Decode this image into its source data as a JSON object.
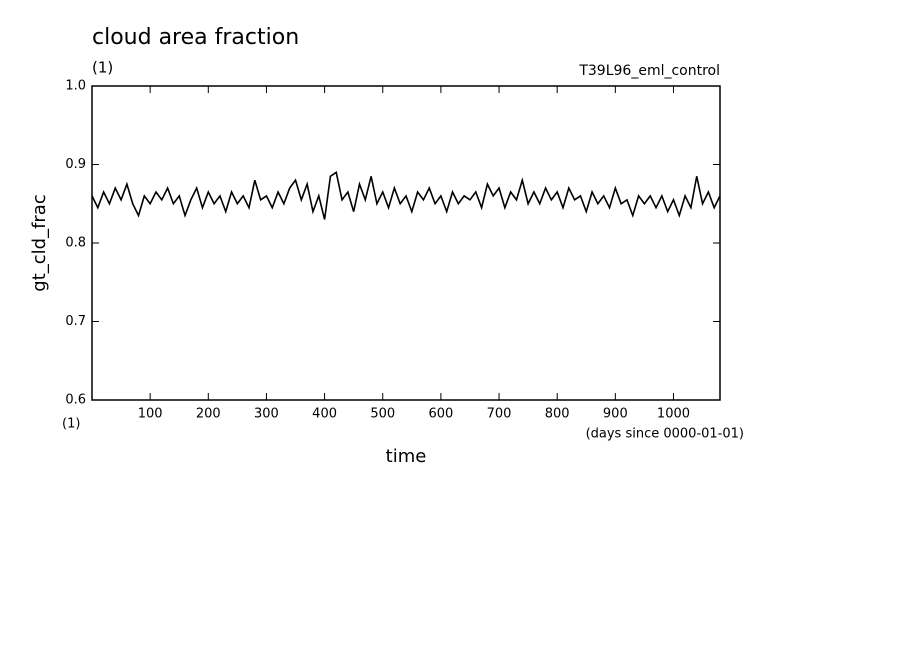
{
  "chart_data": {
    "type": "line",
    "title": "cloud area fraction",
    "units_top": "(1)",
    "units_bottom": "(1)",
    "experiment": "T39L96_eml_control",
    "ylabel": "gt_cld_frac",
    "xlabel": "time",
    "xunits": "(days since 0000-01-01)",
    "x": [
      0,
      10,
      20,
      30,
      40,
      50,
      60,
      70,
      80,
      90,
      100,
      110,
      120,
      130,
      140,
      150,
      160,
      170,
      180,
      190,
      200,
      210,
      220,
      230,
      240,
      250,
      260,
      270,
      280,
      290,
      300,
      310,
      320,
      330,
      340,
      350,
      360,
      370,
      380,
      390,
      400,
      410,
      420,
      430,
      440,
      450,
      460,
      470,
      480,
      490,
      500,
      510,
      520,
      530,
      540,
      550,
      560,
      570,
      580,
      590,
      600,
      610,
      620,
      630,
      640,
      650,
      660,
      670,
      680,
      690,
      700,
      710,
      720,
      730,
      740,
      750,
      760,
      770,
      780,
      790,
      800,
      810,
      820,
      830,
      840,
      850,
      860,
      870,
      880,
      890,
      900,
      910,
      920,
      930,
      940,
      950,
      960,
      970,
      980,
      990,
      1000,
      1010,
      1020,
      1030,
      1040,
      1050,
      1060,
      1070,
      1080
    ],
    "series": [
      {
        "color": "#000000",
        "values": [
          0.86,
          0.845,
          0.865,
          0.85,
          0.87,
          0.855,
          0.875,
          0.85,
          0.835,
          0.86,
          0.85,
          0.865,
          0.855,
          0.87,
          0.85,
          0.86,
          0.835,
          0.855,
          0.87,
          0.845,
          0.865,
          0.85,
          0.86,
          0.84,
          0.865,
          0.85,
          0.86,
          0.845,
          0.88,
          0.855,
          0.86,
          0.845,
          0.865,
          0.85,
          0.87,
          0.88,
          0.855,
          0.875,
          0.84,
          0.86,
          0.83,
          0.885,
          0.89,
          0.855,
          0.865,
          0.84,
          0.875,
          0.855,
          0.885,
          0.85,
          0.865,
          0.845,
          0.87,
          0.85,
          0.86,
          0.84,
          0.865,
          0.855,
          0.87,
          0.85,
          0.86,
          0.84,
          0.865,
          0.85,
          0.86,
          0.855,
          0.865,
          0.845,
          0.875,
          0.86,
          0.87,
          0.845,
          0.865,
          0.855,
          0.88,
          0.85,
          0.865,
          0.85,
          0.87,
          0.855,
          0.865,
          0.845,
          0.87,
          0.855,
          0.86,
          0.84,
          0.865,
          0.85,
          0.86,
          0.845,
          0.87,
          0.85,
          0.855,
          0.835,
          0.86,
          0.85,
          0.86,
          0.845,
          0.86,
          0.84,
          0.855,
          0.835,
          0.86,
          0.845,
          0.885,
          0.85,
          0.865,
          0.845,
          0.86
        ]
      }
    ],
    "xlim": [
      0,
      1080
    ],
    "xticks": [
      100,
      200,
      300,
      400,
      500,
      600,
      700,
      800,
      900,
      1000
    ],
    "ylim": [
      0.6,
      1
    ],
    "yticks": [
      0.6,
      0.7,
      0.8,
      0.9,
      {
        "value": 1,
        "label": "1.0"
      }
    ]
  }
}
